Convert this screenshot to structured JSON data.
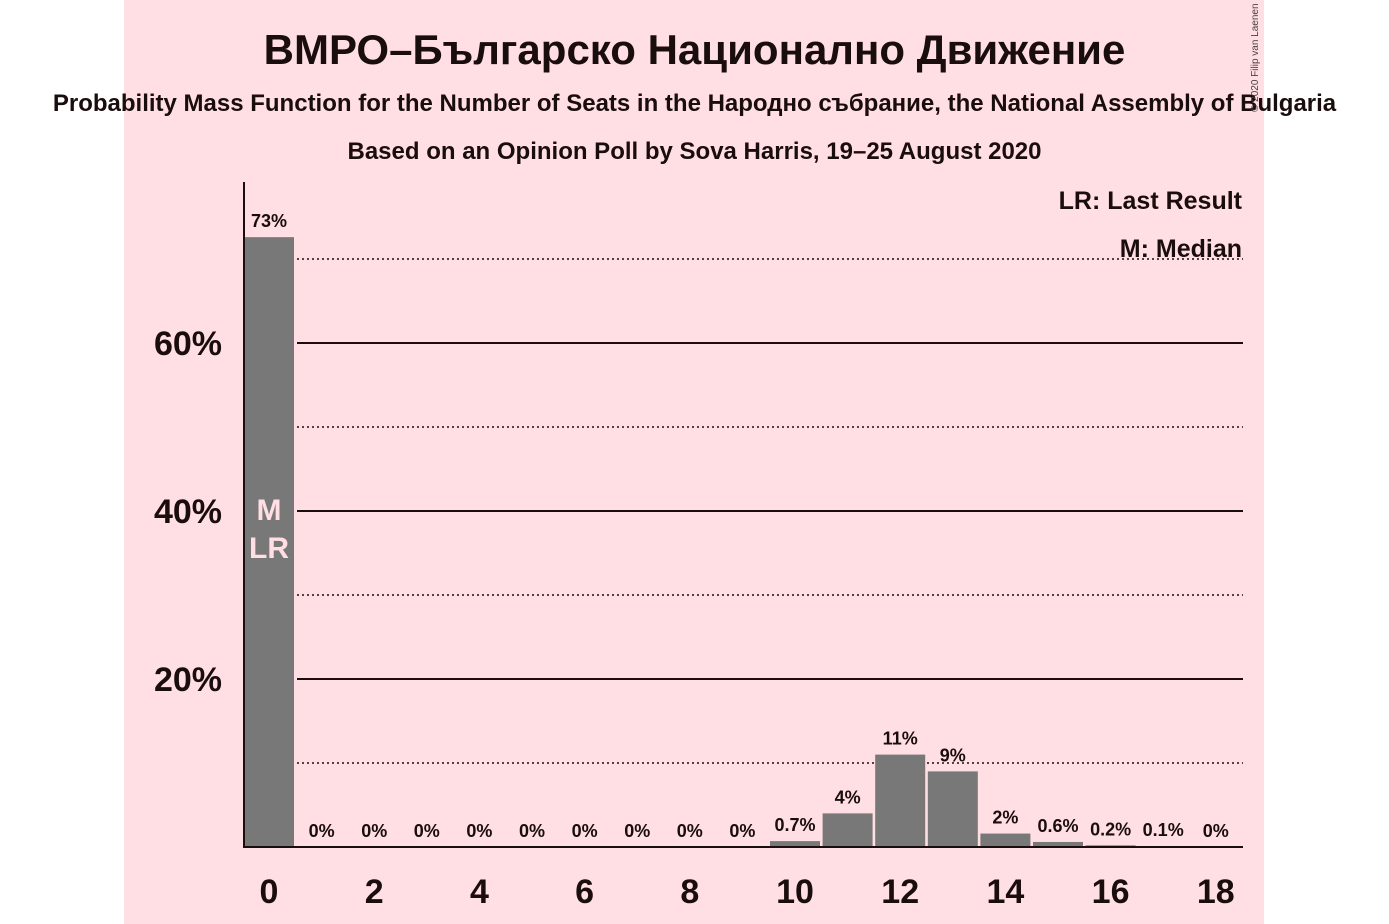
{
  "chart_data": {
    "type": "bar",
    "title": "ВМРО–Българско Национално Движение",
    "subtitle": "Probability Mass Function for the Number of Seats in the Народно събрание, the National Assembly of Bulgaria",
    "caption": "Based on an Opinion Poll by Sova Harris, 19–25 August 2020",
    "copyright": "© 2020 Filip van Laenen",
    "x": [
      0,
      1,
      2,
      3,
      4,
      5,
      6,
      7,
      8,
      9,
      10,
      11,
      12,
      13,
      14,
      15,
      16,
      17,
      18
    ],
    "values": [
      72.6,
      0,
      0,
      0,
      0,
      0,
      0,
      0,
      0,
      0,
      0.7,
      4,
      11,
      9,
      1.6,
      0.6,
      0.2,
      0.1,
      0
    ],
    "data_labels": [
      "73%",
      "0%",
      "0%",
      "0%",
      "0%",
      "0%",
      "0%",
      "0%",
      "0%",
      "0%",
      "0.7%",
      "4%",
      "11%",
      "9%",
      "2%",
      "0.6%",
      "0.2%",
      "0.1%",
      "0%"
    ],
    "x_ticks": [
      "0",
      "2",
      "4",
      "6",
      "8",
      "10",
      "12",
      "14",
      "16",
      "18"
    ],
    "y_ticks": [
      "20%",
      "40%",
      "60%"
    ],
    "ylim": [
      0,
      79
    ],
    "grid": {
      "solid_every": 20,
      "dotted_every": 10
    },
    "median_seat": 0,
    "last_result_seat": 0,
    "bar_markers": [
      "M",
      "LR"
    ],
    "legend": [
      "LR: Last Result",
      "M: Median"
    ],
    "legend_position": "top-right",
    "colors": {
      "background": "#ffdfe3",
      "bar": "#787878",
      "text": "#1a0d0d",
      "marker_text": "#ffdfe3"
    }
  }
}
